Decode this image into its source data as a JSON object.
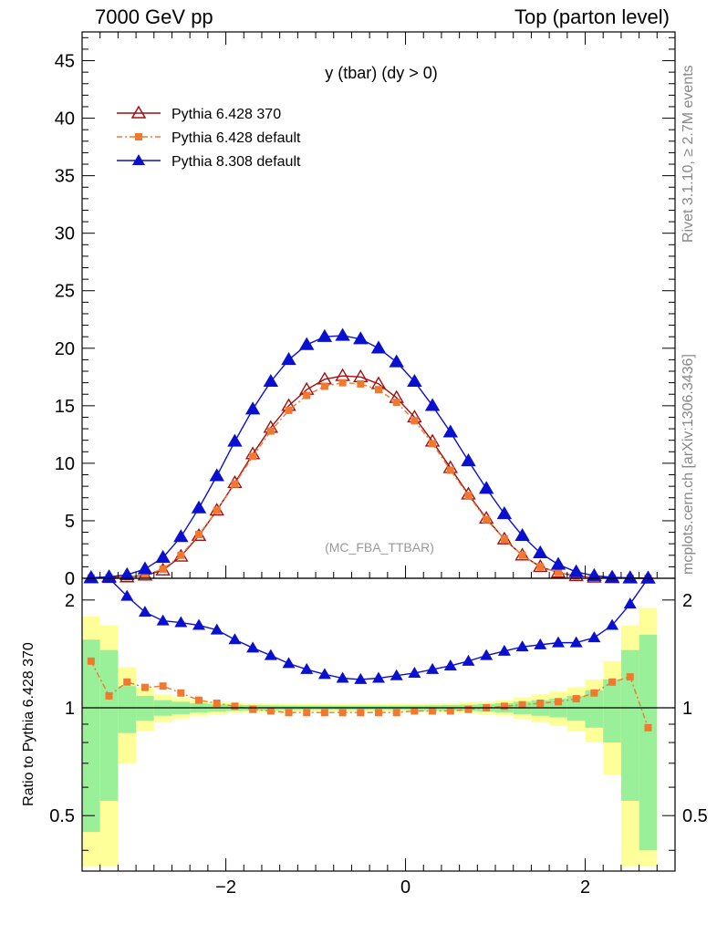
{
  "header": {
    "left": "7000 GeV pp",
    "right": "Top (parton level)"
  },
  "side_text": {
    "rivet": "Rivet 3.1.10, ≥ 2.7M events",
    "mcplots": "mcplots.cern.ch [arXiv:1306.3436]"
  },
  "chart_data": {
    "type": "line",
    "title": "y (tbar) (dy > 0)",
    "watermark": "(MC_FBA_TTBAR)",
    "ratio_ylabel": "Ratio to Pythia 6.428 370",
    "xlim": [
      -3.6,
      3.0
    ],
    "ylim": [
      0,
      47.5
    ],
    "ratio_ylim": [
      0.35,
      2.3
    ],
    "x_ticks": [
      -2,
      0,
      2
    ],
    "x_tick_labels": [
      "−2",
      "0",
      "2"
    ],
    "y_ticks": [
      0,
      5,
      10,
      15,
      20,
      25,
      30,
      35,
      40,
      45
    ],
    "ratio_ticks": [
      0.5,
      1,
      2
    ],
    "ratio_tick_labels": [
      "0.5",
      "1",
      "2"
    ],
    "x": [
      -3.5,
      -3.3,
      -3.1,
      -2.9,
      -2.7,
      -2.5,
      -2.3,
      -2.1,
      -1.9,
      -1.7,
      -1.5,
      -1.3,
      -1.1,
      -0.9,
      -0.7,
      -0.5,
      -0.3,
      -0.1,
      0.1,
      0.3,
      0.5,
      0.7,
      0.9,
      1.1,
      1.3,
      1.5,
      1.7,
      1.9,
      2.1,
      2.3,
      2.5,
      2.7
    ],
    "series": [
      {
        "name": "Pythia 6.428 370",
        "color": "#a01010",
        "marker": "open-triangle",
        "values": [
          0.02,
          0.05,
          0.1,
          0.25,
          0.7,
          1.9,
          3.7,
          5.9,
          8.3,
          10.8,
          13.1,
          15.0,
          16.4,
          17.3,
          17.6,
          17.5,
          16.9,
          15.7,
          14.0,
          11.9,
          9.6,
          7.3,
          5.2,
          3.4,
          2.0,
          1.0,
          0.5,
          0.2,
          0.08,
          0.03,
          0.01,
          0.0
        ]
      },
      {
        "name": "Pythia 6.428 default",
        "color": "#f07830",
        "marker": "filled-square",
        "values": [
          0.03,
          0.06,
          0.12,
          0.3,
          0.8,
          2.0,
          3.8,
          5.9,
          8.2,
          10.6,
          12.8,
          14.6,
          15.9,
          16.7,
          17.0,
          16.9,
          16.4,
          15.3,
          13.7,
          11.7,
          9.4,
          7.2,
          5.1,
          3.4,
          2.0,
          1.0,
          0.5,
          0.2,
          0.08,
          0.03,
          0.01,
          0.0
        ]
      },
      {
        "name": "Pythia 8.308 default",
        "color": "#0a10d0",
        "marker": "filled-triangle",
        "values": [
          0.05,
          0.12,
          0.3,
          0.8,
          1.8,
          3.6,
          6.1,
          8.9,
          11.9,
          14.7,
          17.1,
          19.0,
          20.3,
          21.0,
          21.1,
          20.8,
          20.0,
          18.8,
          17.1,
          15.0,
          12.7,
          10.2,
          7.8,
          5.6,
          3.7,
          2.2,
          1.2,
          0.55,
          0.22,
          0.08,
          0.03,
          0.01
        ]
      }
    ],
    "ratio_series": [
      {
        "name": "Pythia 6.428 default",
        "values": [
          1.35,
          1.08,
          1.18,
          1.14,
          1.15,
          1.1,
          1.05,
          1.03,
          1.01,
          0.99,
          0.98,
          0.97,
          0.97,
          0.97,
          0.97,
          0.97,
          0.97,
          0.97,
          0.98,
          0.98,
          0.98,
          0.99,
          1.0,
          1.01,
          1.02,
          1.03,
          1.04,
          1.06,
          1.1,
          1.18,
          1.22,
          0.88
        ]
      },
      {
        "name": "Pythia 8.308 default",
        "values": [
          2.45,
          2.3,
          2.05,
          1.85,
          1.75,
          1.73,
          1.7,
          1.65,
          1.55,
          1.47,
          1.4,
          1.33,
          1.28,
          1.24,
          1.21,
          1.2,
          1.21,
          1.23,
          1.25,
          1.28,
          1.31,
          1.35,
          1.4,
          1.44,
          1.48,
          1.5,
          1.52,
          1.52,
          1.57,
          1.7,
          1.95,
          2.3
        ]
      }
    ],
    "ratio_bands": {
      "green_half_width": [
        0.55,
        0.45,
        0.15,
        0.08,
        0.05,
        0.04,
        0.03,
        0.025,
        0.02,
        0.018,
        0.016,
        0.015,
        0.014,
        0.014,
        0.014,
        0.014,
        0.014,
        0.014,
        0.015,
        0.016,
        0.018,
        0.02,
        0.025,
        0.03,
        0.04,
        0.05,
        0.06,
        0.08,
        0.12,
        0.2,
        0.45,
        0.6
      ],
      "yellow_half_width": [
        0.8,
        0.7,
        0.3,
        0.14,
        0.09,
        0.07,
        0.05,
        0.04,
        0.035,
        0.03,
        0.028,
        0.026,
        0.025,
        0.025,
        0.025,
        0.025,
        0.025,
        0.025,
        0.026,
        0.028,
        0.03,
        0.035,
        0.04,
        0.05,
        0.07,
        0.09,
        0.11,
        0.14,
        0.2,
        0.35,
        0.7,
        0.9
      ]
    }
  }
}
